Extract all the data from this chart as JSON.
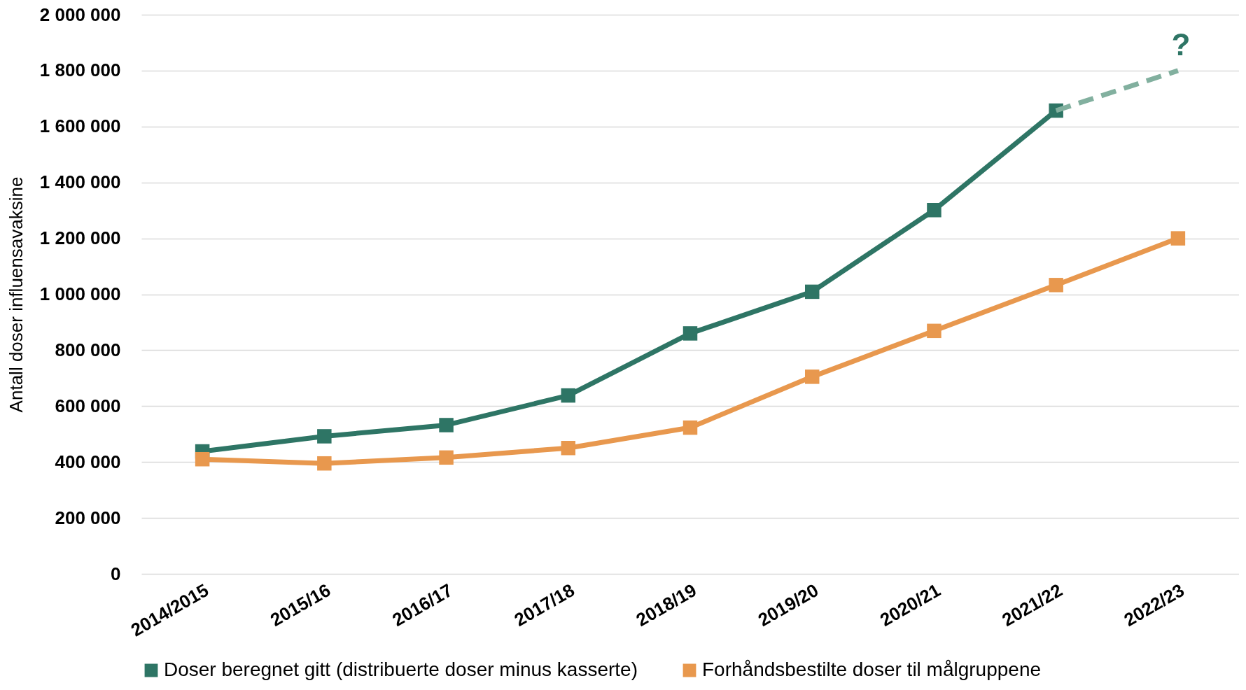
{
  "chart_data": {
    "type": "line",
    "ylabel": "Antall doser influensavaksine",
    "categories": [
      "2014/2015",
      "2015/16",
      "2016/17",
      "2017/18",
      "2018/19",
      "2019/20",
      "2020/21",
      "2021/22",
      "2022/23"
    ],
    "series": [
      {
        "name": "Doser beregnet gitt (distribuerte doser minus kasserte)",
        "color": "#2e7565",
        "marker": "square",
        "line_style": "solid",
        "values": [
          438000,
          492000,
          532000,
          638000,
          860000,
          1009000,
          1301000,
          1657000,
          null
        ]
      },
      {
        "color": "#82b09f",
        "marker": "none",
        "line_style": "dashed",
        "values": [
          null,
          null,
          null,
          null,
          null,
          null,
          null,
          1657000,
          1800000
        ]
      },
      {
        "name": "Forhåndsbestilte doser til målgruppene",
        "color": "#e8984e",
        "marker": "square",
        "line_style": "solid",
        "values": [
          410000,
          395000,
          416000,
          450000,
          523000,
          705000,
          869000,
          1033000,
          1200000
        ]
      }
    ],
    "annotations": [
      "?"
    ],
    "ylim": [
      0,
      2000000
    ],
    "yticks": [
      {
        "value": 0,
        "label": "0"
      },
      {
        "value": 200000,
        "label": "200 000"
      },
      {
        "value": 400000,
        "label": "400 000"
      },
      {
        "value": 600000,
        "label": "600 000"
      },
      {
        "value": 800000,
        "label": "800 000"
      },
      {
        "value": 1000000,
        "label": "1 000 000"
      },
      {
        "value": 1200000,
        "label": "1 200 000"
      },
      {
        "value": 1400000,
        "label": "1 400 000"
      },
      {
        "value": 1600000,
        "label": "1 600 000"
      },
      {
        "value": 1800000,
        "label": "1 800 000"
      },
      {
        "value": 2000000,
        "label": "2 000 000"
      }
    ],
    "grid": "y",
    "legend": "bottom"
  }
}
